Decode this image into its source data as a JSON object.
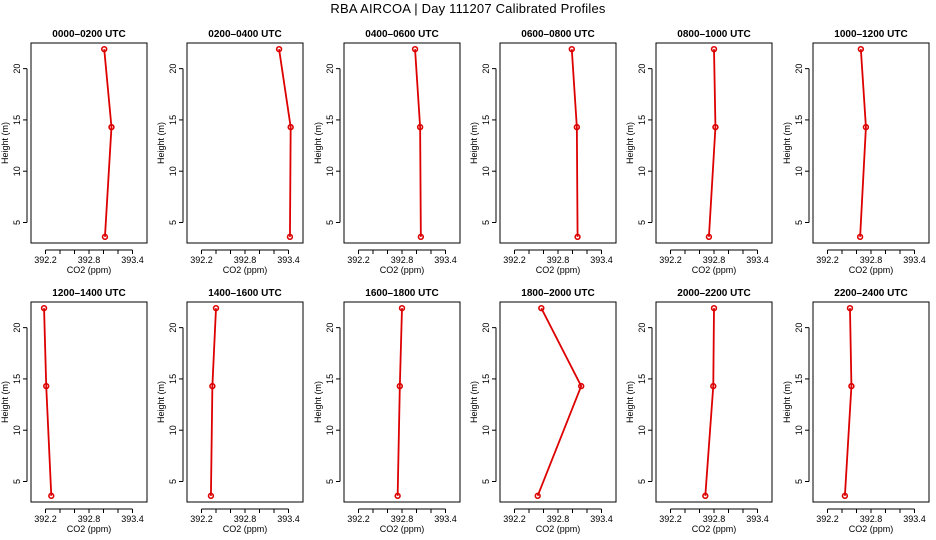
{
  "title": "RBA AIRCOA |  Day 111207  Calibrated Profiles",
  "chart_data": {
    "type": "line",
    "layout": "2x6 small multiples",
    "xlabel": "CO2 (ppm)",
    "ylabel": "Height (m)",
    "xlim": [
      392.0,
      393.6
    ],
    "ylim": [
      3.0,
      22.5
    ],
    "x_ticks": [
      "392.2",
      "392.8",
      "393.4"
    ],
    "y_ticks": [
      "5",
      "10",
      "15",
      "20"
    ],
    "heights": [
      3.6,
      14.3,
      21.9
    ],
    "line_color": "#dd0000",
    "panels": [
      {
        "title": "0000–0200 UTC",
        "co2": [
          393.02,
          393.11,
          393.01
        ]
      },
      {
        "title": "0200–0400 UTC",
        "co2": [
          393.42,
          393.43,
          393.27
        ]
      },
      {
        "title": "0400–0600 UTC",
        "co2": [
          393.06,
          393.05,
          392.98
        ]
      },
      {
        "title": "0600–0800 UTC",
        "co2": [
          393.07,
          393.06,
          392.99
        ]
      },
      {
        "title": "0800–1000 UTC",
        "co2": [
          392.73,
          392.82,
          392.8
        ]
      },
      {
        "title": "1000–1200 UTC",
        "co2": [
          392.65,
          392.73,
          392.66
        ]
      },
      {
        "title": "1200–1400 UTC",
        "co2": [
          392.28,
          392.21,
          392.18
        ]
      },
      {
        "title": "1400–1600 UTC",
        "co2": [
          392.33,
          392.35,
          392.4
        ]
      },
      {
        "title": "1600–1800 UTC",
        "co2": [
          392.74,
          392.77,
          392.8
        ]
      },
      {
        "title": "1800–2000 UTC",
        "co2": [
          392.52,
          393.12,
          392.57
        ]
      },
      {
        "title": "2000–2200 UTC",
        "co2": [
          392.68,
          392.79,
          392.8
        ]
      },
      {
        "title": "2200–2400 UTC",
        "co2": [
          392.44,
          392.53,
          392.51
        ]
      }
    ]
  }
}
